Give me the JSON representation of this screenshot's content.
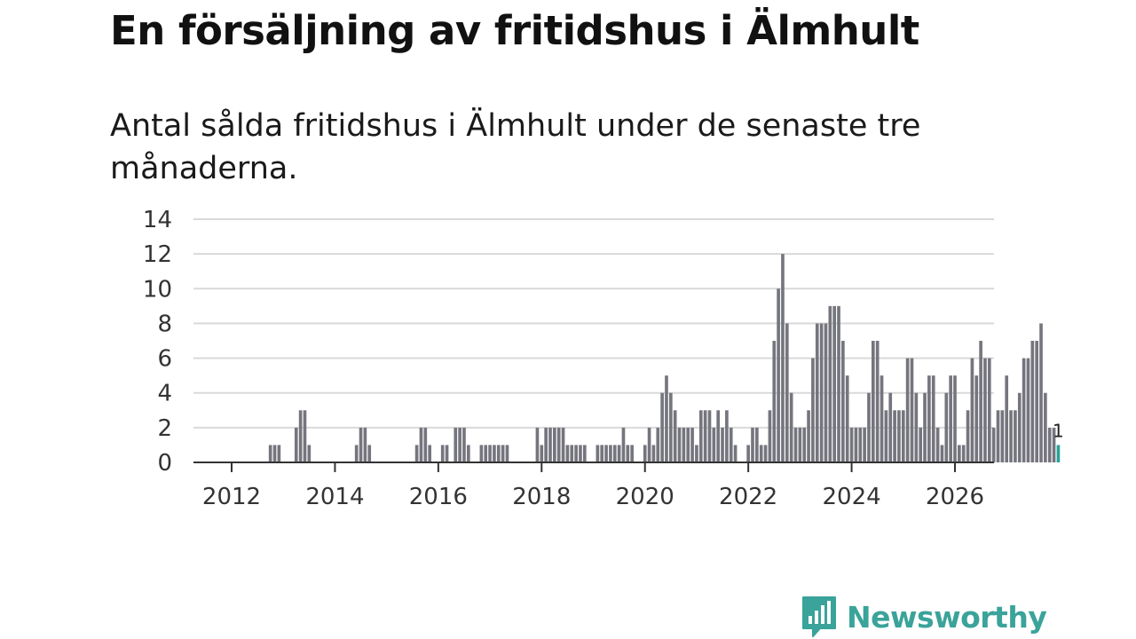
{
  "title": "En försäljning av fritidshus i Älmhult",
  "subtitle": "Antal sålda fritidshus i Älmhult under de senaste tre månaderna.",
  "brand": "Newsworthy",
  "colors": {
    "bar": "#75757e",
    "highlight": "#2aa198",
    "grid": "#d9d9d9",
    "axis": "#333333",
    "brand": "#3aa39a"
  },
  "chart_data": {
    "type": "bar",
    "title": "En försäljning av fritidshus i Älmhult",
    "subtitle": "Antal sålda fritidshus i Älmhult under de senaste tre månaderna.",
    "xlabel": "",
    "ylabel": "",
    "ylim": [
      0,
      14
    ],
    "yticks": [
      0,
      2,
      4,
      6,
      8,
      10,
      12,
      14
    ],
    "xticks": [
      "2012",
      "2014",
      "2016",
      "2018",
      "2020",
      "2022",
      "2024",
      "2026"
    ],
    "x_start": "2012-01",
    "x_step": "month",
    "grid": true,
    "last_value_label": "1",
    "values": [
      0,
      0,
      0,
      0,
      0,
      0,
      0,
      0,
      0,
      1,
      1,
      1,
      0,
      0,
      0,
      2,
      3,
      3,
      1,
      0,
      0,
      0,
      0,
      0,
      0,
      0,
      0,
      0,
      0,
      1,
      2,
      2,
      1,
      0,
      0,
      0,
      0,
      0,
      0,
      0,
      0,
      0,
      0,
      1,
      2,
      2,
      1,
      0,
      0,
      1,
      1,
      0,
      2,
      2,
      2,
      1,
      0,
      0,
      1,
      1,
      1,
      1,
      1,
      1,
      1,
      0,
      0,
      0,
      0,
      0,
      0,
      2,
      1,
      2,
      2,
      2,
      2,
      2,
      1,
      1,
      1,
      1,
      1,
      0,
      0,
      1,
      1,
      1,
      1,
      1,
      1,
      2,
      1,
      1,
      0,
      0,
      1,
      2,
      1,
      2,
      4,
      5,
      4,
      3,
      2,
      2,
      2,
      2,
      1,
      3,
      3,
      3,
      2,
      3,
      2,
      3,
      2,
      1,
      0,
      0,
      1,
      2,
      2,
      1,
      1,
      3,
      7,
      10,
      12,
      8,
      4,
      2,
      2,
      2,
      3,
      6,
      8,
      8,
      8,
      9,
      9,
      9,
      7,
      5,
      2,
      2,
      2,
      2,
      4,
      7,
      7,
      5,
      3,
      4,
      3,
      3,
      3,
      6,
      6,
      4,
      2,
      4,
      5,
      5,
      2,
      1,
      4,
      5,
      5,
      1,
      1,
      3,
      6,
      5,
      7,
      6,
      6,
      2,
      3,
      3,
      5,
      3,
      3,
      4,
      6,
      6,
      7,
      7,
      8,
      4,
      2,
      2,
      1
    ]
  }
}
